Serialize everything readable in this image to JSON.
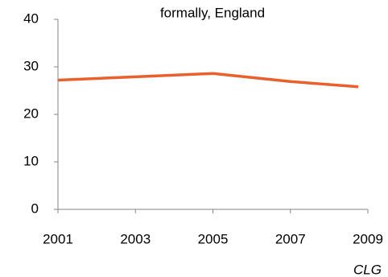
{
  "chart_data": {
    "type": "line",
    "title": "formally, England",
    "source": "CLG",
    "x": [
      2001,
      2003,
      2005,
      2007,
      2008.75
    ],
    "series": [
      {
        "color": "#e8602c",
        "values": [
          27.2,
          27.9,
          28.6,
          26.9,
          25.8
        ]
      }
    ],
    "xlim": [
      2001,
      2009
    ],
    "xticks": [
      2001,
      2003,
      2005,
      2007,
      2009
    ],
    "ylim": [
      0,
      40
    ],
    "yticks": [
      0,
      10,
      20,
      30,
      40
    ],
    "grid": false
  }
}
